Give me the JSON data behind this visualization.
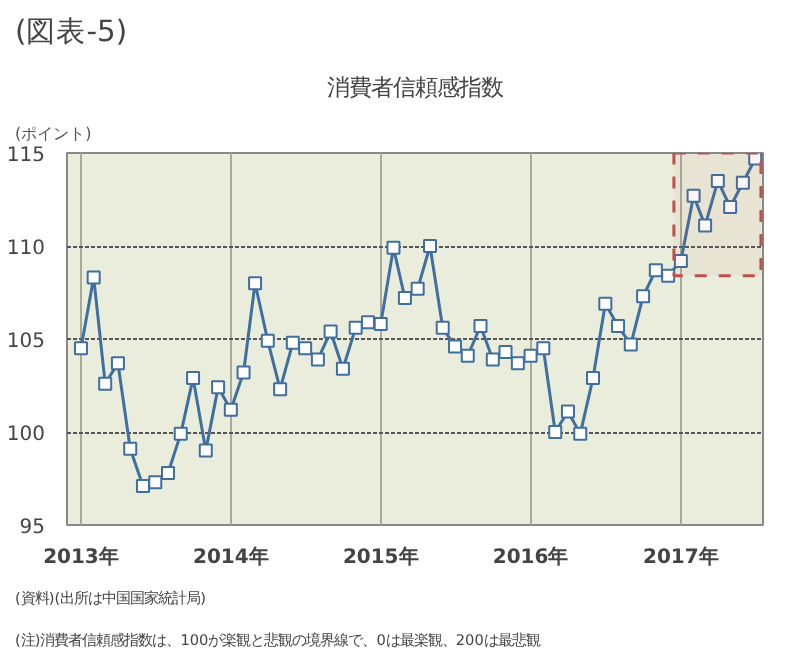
{
  "chart_data": {
    "type": "line",
    "title": "消費者信頼感指数",
    "ylabel": "(ポイント)",
    "annotations": [
      "(図表-5)",
      "(資料)(出所は中国国家統計局)",
      "(注)消費者信頼感指数は、100が楽観と悲観の境界線で、0は最楽観、200は最悲観"
    ],
    "x": [
      "2013-01",
      "2013-02",
      "2013-03",
      "2013-04",
      "2013-05",
      "2013-06",
      "2013-07",
      "2013-08",
      "2013-09",
      "2013-10",
      "2013-11",
      "2013-12",
      "2014-01",
      "2014-02",
      "2014-03",
      "2014-04",
      "2014-05",
      "2014-06",
      "2014-07",
      "2014-08",
      "2014-09",
      "2014-10",
      "2014-11",
      "2014-12",
      "2015-01",
      "2015-02",
      "2015-03",
      "2015-04",
      "2015-05",
      "2015-06",
      "2015-07",
      "2015-08",
      "2015-09",
      "2015-10",
      "2015-11",
      "2015-12",
      "2016-01",
      "2016-02",
      "2016-03",
      "2016-04",
      "2016-05",
      "2016-06",
      "2016-07",
      "2016-08",
      "2016-09",
      "2016-10",
      "2016-11",
      "2016-12",
      "2017-01",
      "2017-02",
      "2017-03",
      "2017-04",
      "2017-05",
      "2017-06",
      "2017-07"
    ],
    "series": [
      {
        "color": "#3f6f9f",
        "values": [
          104.5,
          108.3,
          102.6,
          103.7,
          99.1,
          97.1,
          97.3,
          97.8,
          99.9,
          102.9,
          99.0,
          102.4,
          101.2,
          103.2,
          108.0,
          104.9,
          102.3,
          104.8,
          104.5,
          103.9,
          105.4,
          103.4,
          105.6,
          105.9,
          105.8,
          109.9,
          107.2,
          107.7,
          110.0,
          105.6,
          104.6,
          104.1,
          105.7,
          103.9,
          104.3,
          103.7,
          104.1,
          104.5,
          100.0,
          101.1,
          99.9,
          102.9,
          106.9,
          105.7,
          104.7,
          107.3,
          108.7,
          108.4,
          109.2,
          112.7,
          111.1,
          113.5,
          112.1,
          113.4,
          114.7
        ]
      }
    ],
    "xlim": [
      "2012-11-28",
      "2017-07-20"
    ],
    "ylim": [
      95,
      115
    ],
    "xticks": [
      {
        "value": "2013-01",
        "label": "2013年"
      },
      {
        "value": "2014-01",
        "label": "2014年"
      },
      {
        "value": "2015-01",
        "label": "2015年"
      },
      {
        "value": "2016-01",
        "label": "2016年"
      },
      {
        "value": "2017-01",
        "label": "2017年"
      }
    ],
    "yticks": [
      95,
      100,
      105,
      110,
      115
    ],
    "bands": [
      {
        "axis": "x",
        "from": "2016-12-15",
        "to": "2017-07-15",
        "color": "#c0504d"
      }
    ],
    "grid": true,
    "marker": "square",
    "line_style": "solid"
  }
}
